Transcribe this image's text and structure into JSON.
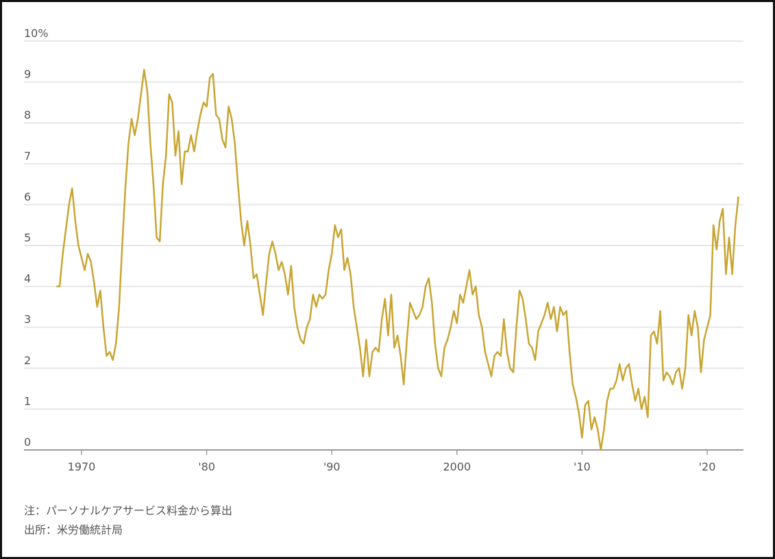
{
  "chart_data": {
    "type": "line",
    "x": [
      1968,
      1968.25,
      1968.5,
      1968.75,
      1969,
      1969.25,
      1969.5,
      1969.75,
      1970,
      1970.25,
      1970.5,
      1970.75,
      1971,
      1971.25,
      1971.5,
      1971.75,
      1972,
      1972.25,
      1972.5,
      1972.75,
      1973,
      1973.25,
      1973.5,
      1973.75,
      1974,
      1974.25,
      1974.5,
      1974.75,
      1975,
      1975.25,
      1975.5,
      1975.75,
      1976,
      1976.25,
      1976.5,
      1976.75,
      1977,
      1977.25,
      1977.5,
      1977.75,
      1978,
      1978.25,
      1978.5,
      1978.75,
      1979,
      1979.25,
      1979.5,
      1979.75,
      1980,
      1980.25,
      1980.5,
      1980.75,
      1981,
      1981.25,
      1981.5,
      1981.75,
      1982,
      1982.25,
      1982.5,
      1982.75,
      1983,
      1983.25,
      1983.5,
      1983.75,
      1984,
      1984.25,
      1984.5,
      1984.75,
      1985,
      1985.25,
      1985.5,
      1985.75,
      1986,
      1986.25,
      1986.5,
      1986.75,
      1987,
      1987.25,
      1987.5,
      1987.75,
      1988,
      1988.25,
      1988.5,
      1988.75,
      1989,
      1989.25,
      1989.5,
      1989.75,
      1990,
      1990.25,
      1990.5,
      1990.75,
      1991,
      1991.25,
      1991.5,
      1991.75,
      1992,
      1992.25,
      1992.5,
      1992.75,
      1993,
      1993.25,
      1993.5,
      1993.75,
      1994,
      1994.25,
      1994.5,
      1994.75,
      1995,
      1995.25,
      1995.5,
      1995.75,
      1996,
      1996.25,
      1996.5,
      1996.75,
      1997,
      1997.25,
      1997.5,
      1997.75,
      1998,
      1998.25,
      1998.5,
      1998.75,
      1999,
      1999.25,
      1999.5,
      1999.75,
      2000,
      2000.25,
      2000.5,
      2000.75,
      2001,
      2001.25,
      2001.5,
      2001.75,
      2002,
      2002.25,
      2002.5,
      2002.75,
      2003,
      2003.25,
      2003.5,
      2003.75,
      2004,
      2004.25,
      2004.5,
      2004.75,
      2005,
      2005.25,
      2005.5,
      2005.75,
      2006,
      2006.25,
      2006.5,
      2006.75,
      2007,
      2007.25,
      2007.5,
      2007.75,
      2008,
      2008.25,
      2008.5,
      2008.75,
      2009,
      2009.25,
      2009.5,
      2009.75,
      2010,
      2010.25,
      2010.5,
      2010.75,
      2011,
      2011.25,
      2011.5,
      2011.75,
      2012,
      2012.25,
      2012.5,
      2012.75,
      2013,
      2013.25,
      2013.5,
      2013.75,
      2014,
      2014.25,
      2014.5,
      2014.75,
      2015,
      2015.25,
      2015.5,
      2015.75,
      2016,
      2016.25,
      2016.5,
      2016.75,
      2017,
      2017.25,
      2017.5,
      2017.75,
      2018,
      2018.25,
      2018.5,
      2018.75,
      2019,
      2019.25,
      2019.5,
      2019.75,
      2020,
      2020.25,
      2020.5,
      2020.75,
      2021,
      2021.25,
      2021.5,
      2021.75,
      2022,
      2022.25,
      2022.5
    ],
    "series": [
      {
        "color": "#c8a532",
        "values": [
          4.0,
          4.0,
          4.8,
          5.4,
          6.0,
          6.4,
          5.6,
          5.0,
          4.7,
          4.4,
          4.8,
          4.6,
          4.1,
          3.5,
          3.9,
          3.0,
          2.3,
          2.4,
          2.2,
          2.6,
          3.5,
          5.0,
          6.4,
          7.5,
          8.1,
          7.7,
          8.1,
          8.7,
          9.3,
          8.8,
          7.5,
          6.5,
          5.2,
          5.1,
          6.5,
          7.2,
          8.7,
          8.5,
          7.2,
          7.8,
          6.5,
          7.3,
          7.3,
          7.7,
          7.3,
          7.8,
          8.2,
          8.5,
          8.4,
          9.1,
          9.2,
          8.2,
          8.1,
          7.6,
          7.4,
          8.4,
          8.1,
          7.5,
          6.5,
          5.6,
          5.0,
          5.6,
          5.0,
          4.2,
          4.3,
          3.8,
          3.3,
          4.1,
          4.8,
          5.1,
          4.8,
          4.4,
          4.6,
          4.3,
          3.8,
          4.5,
          3.5,
          3.0,
          2.7,
          2.6,
          3.0,
          3.2,
          3.8,
          3.5,
          3.8,
          3.7,
          3.8,
          4.4,
          4.8,
          5.5,
          5.2,
          5.4,
          4.4,
          4.7,
          4.3,
          3.5,
          3.0,
          2.5,
          1.8,
          2.7,
          1.8,
          2.4,
          2.5,
          2.4,
          3.2,
          3.7,
          2.8,
          3.8,
          2.5,
          2.8,
          2.3,
          1.6,
          2.7,
          3.6,
          3.4,
          3.2,
          3.3,
          3.5,
          4.0,
          4.2,
          3.6,
          2.6,
          2.0,
          1.8,
          2.5,
          2.7,
          3.0,
          3.4,
          3.1,
          3.8,
          3.6,
          4.0,
          4.4,
          3.8,
          4.0,
          3.3,
          3.0,
          2.4,
          2.1,
          1.8,
          2.3,
          2.4,
          2.3,
          3.2,
          2.4,
          2.0,
          1.9,
          3.0,
          3.9,
          3.7,
          3.2,
          2.6,
          2.5,
          2.2,
          2.9,
          3.1,
          3.3,
          3.6,
          3.2,
          3.5,
          2.9,
          3.5,
          3.3,
          3.4,
          2.4,
          1.6,
          1.3,
          0.9,
          0.3,
          1.1,
          1.2,
          0.5,
          0.8,
          0.5,
          0.0,
          0.5,
          1.2,
          1.5,
          1.5,
          1.7,
          2.1,
          1.7,
          2.0,
          2.1,
          1.6,
          1.2,
          1.5,
          1.0,
          1.3,
          0.8,
          2.8,
          2.9,
          2.6,
          3.4,
          1.7,
          1.9,
          1.8,
          1.6,
          1.9,
          2.0,
          1.5,
          2.0,
          3.3,
          2.8,
          3.4,
          3.0,
          1.9,
          2.7,
          3.0,
          3.3,
          5.5,
          4.9,
          5.6,
          5.9,
          4.3,
          5.2,
          4.3,
          5.5,
          6.2
        ]
      }
    ],
    "xlim": [
      1965.4,
      2022.9
    ],
    "xticks": [
      1970,
      {
        "value": 1980,
        "label": "'80"
      },
      {
        "value": 1990,
        "label": "'90"
      },
      2000,
      {
        "value": 2010,
        "label": "'10"
      },
      {
        "value": 2020,
        "label": "'20"
      }
    ],
    "ylim": [
      0,
      10
    ],
    "yticks": [
      0,
      1,
      2,
      3,
      4,
      5,
      6,
      7,
      8,
      9,
      {
        "value": 10,
        "label": "10%"
      }
    ],
    "grid": true,
    "notes": [
      "注：パーソナルケアサービス料金から算出",
      "出所：米労働統計局"
    ]
  }
}
